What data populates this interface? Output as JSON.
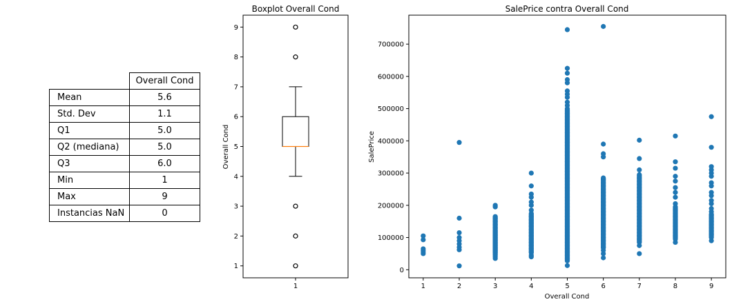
{
  "table": {
    "column_header": "Overall Cond",
    "rows": [
      {
        "label": "Mean",
        "value": "5.6"
      },
      {
        "label": "Std. Dev",
        "value": "1.1"
      },
      {
        "label": "Q1",
        "value": "5.0"
      },
      {
        "label": "Q2 (mediana)",
        "value": "5.0"
      },
      {
        "label": "Q3",
        "value": "6.0"
      },
      {
        "label": "Min",
        "value": "1"
      },
      {
        "label": "Max",
        "value": "9"
      },
      {
        "label": "Instancias NaN",
        "value": "0"
      }
    ]
  },
  "chart_data": [
    {
      "type": "box",
      "title": "Boxplot Overall Cond",
      "ylabel": "Overall Cond",
      "xlabel": "",
      "categories": [
        "1"
      ],
      "ylim": [
        0.6,
        9.4
      ],
      "yticks": [
        1,
        2,
        3,
        4,
        5,
        6,
        7,
        8,
        9
      ],
      "box": {
        "q1": 5,
        "median": 5,
        "q3": 6,
        "whisker_low": 4,
        "whisker_high": 7
      },
      "outliers": [
        1,
        2,
        3,
        8,
        9
      ],
      "colors": {
        "box": "#000000",
        "median": "#ff7f0e"
      }
    },
    {
      "type": "scatter",
      "title": "SalePrice contra Overall Cond",
      "xlabel": "Overall Cond",
      "ylabel": "SalePrice",
      "xlim": [
        0.6,
        9.4
      ],
      "ylim": [
        -25000,
        790000
      ],
      "xticks": [
        1,
        2,
        3,
        4,
        5,
        6,
        7,
        8,
        9
      ],
      "yticks": [
        0,
        100000,
        200000,
        300000,
        400000,
        500000,
        600000,
        700000
      ],
      "color": "#1f77b4",
      "series": [
        {
          "x": 1,
          "y": [
            50000,
            55000,
            60000,
            65000,
            93000,
            105000
          ]
        },
        {
          "x": 2,
          "y": [
            12000,
            62000,
            70000,
            80000,
            90000,
            100000,
            115000,
            160000,
            395000
          ]
        },
        {
          "x": 3,
          "y": [
            35000,
            40000,
            45000,
            55000,
            60000,
            65000,
            70000,
            75000,
            80000,
            85000,
            90000,
            95000,
            100000,
            105000,
            110000,
            115000,
            120000,
            130000,
            140000,
            150000,
            160000,
            165000,
            195000,
            200000
          ]
        },
        {
          "x": 4,
          "y": [
            40000,
            45000,
            55000,
            65000,
            75000,
            85000,
            95000,
            105000,
            115000,
            125000,
            135000,
            145000,
            155000,
            165000,
            175000,
            185000,
            200000,
            210000,
            225000,
            235000,
            260000,
            300000
          ]
        },
        {
          "x": 5,
          "y": [
            13000,
            35000,
            45000,
            55000,
            65000,
            75000,
            85000,
            95000,
            105000,
            115000,
            125000,
            135000,
            145000,
            155000,
            165000,
            175000,
            185000,
            195000,
            205000,
            215000,
            225000,
            235000,
            245000,
            255000,
            265000,
            275000,
            285000,
            295000,
            305000,
            315000,
            325000,
            335000,
            345000,
            355000,
            365000,
            375000,
            385000,
            395000,
            405000,
            415000,
            425000,
            435000,
            445000,
            455000,
            465000,
            475000,
            485000,
            500000,
            510000,
            520000,
            535000,
            545000,
            555000,
            580000,
            590000,
            610000,
            625000,
            745000
          ]
        },
        {
          "x": 6,
          "y": [
            37000,
            50000,
            60000,
            70000,
            80000,
            90000,
            100000,
            110000,
            120000,
            130000,
            140000,
            150000,
            160000,
            170000,
            180000,
            190000,
            200000,
            210000,
            220000,
            230000,
            240000,
            250000,
            260000,
            270000,
            280000,
            285000,
            350000,
            360000,
            390000,
            755000
          ]
        },
        {
          "x": 7,
          "y": [
            50000,
            75000,
            85000,
            95000,
            105000,
            115000,
            125000,
            135000,
            145000,
            155000,
            165000,
            175000,
            185000,
            195000,
            205000,
            215000,
            225000,
            235000,
            245000,
            255000,
            265000,
            275000,
            285000,
            295000,
            310000,
            345000,
            402000
          ]
        },
        {
          "x": 8,
          "y": [
            85000,
            95000,
            105000,
            115000,
            125000,
            135000,
            145000,
            155000,
            165000,
            175000,
            185000,
            195000,
            205000,
            225000,
            240000,
            255000,
            275000,
            290000,
            315000,
            335000,
            415000
          ]
        },
        {
          "x": 9,
          "y": [
            90000,
            100000,
            110000,
            120000,
            130000,
            140000,
            150000,
            160000,
            170000,
            180000,
            190000,
            205000,
            215000,
            230000,
            240000,
            260000,
            270000,
            290000,
            300000,
            310000,
            320000,
            380000,
            475000
          ]
        }
      ]
    }
  ]
}
